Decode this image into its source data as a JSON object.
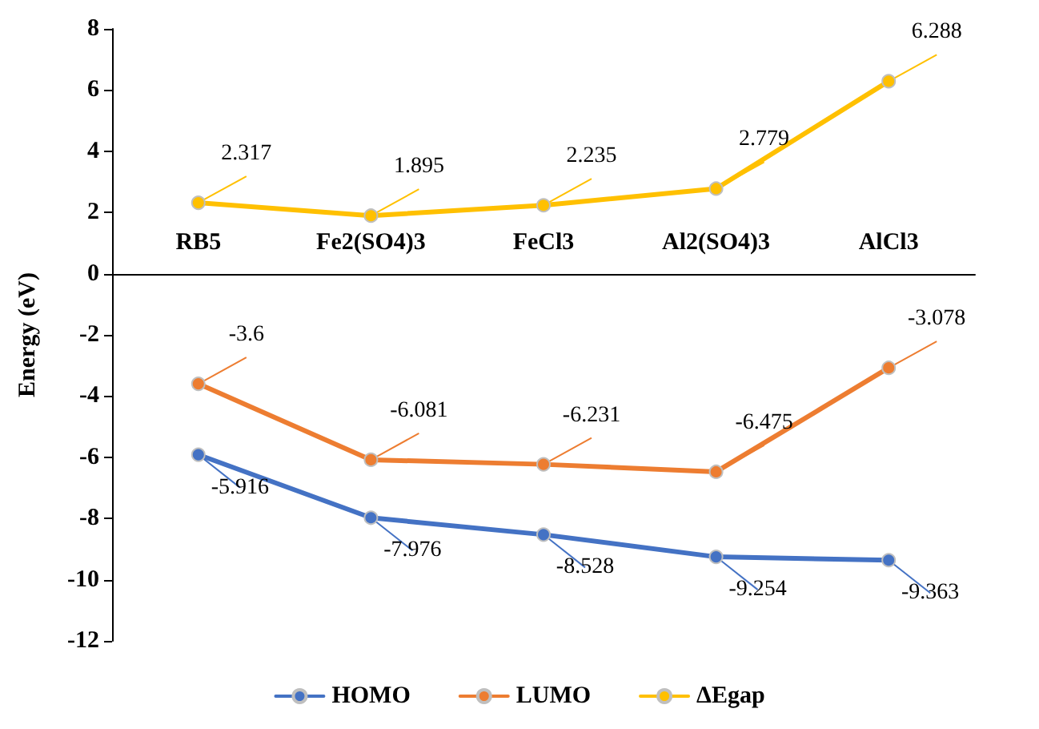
{
  "chart_data": {
    "type": "line",
    "ylabel": "Energy (eV)",
    "categories": [
      "RB5",
      "Fe2(SO4)3",
      "FeCl3",
      "Al2(SO4)3",
      "AlCl3"
    ],
    "series": [
      {
        "name": "HOMO",
        "color": "#4472c4",
        "values": [
          -5.916,
          -7.976,
          -8.528,
          -9.254,
          -9.363
        ]
      },
      {
        "name": "LUMO",
        "color": "#ed7d31",
        "values": [
          -3.6,
          -6.081,
          -6.231,
          -6.475,
          -3.078
        ]
      },
      {
        "name": "ΔEgap",
        "color": "#ffc000",
        "values": [
          2.317,
          1.895,
          2.235,
          2.779,
          6.288
        ]
      }
    ],
    "ylim": [
      -12,
      8
    ],
    "yticks": [
      -12,
      -10,
      -8,
      -6,
      -4,
      -2,
      0,
      2,
      4,
      6,
      8
    ],
    "data_labels": true,
    "legend": "bottom",
    "grid": false,
    "marker": "circle",
    "line_style": "solid"
  }
}
